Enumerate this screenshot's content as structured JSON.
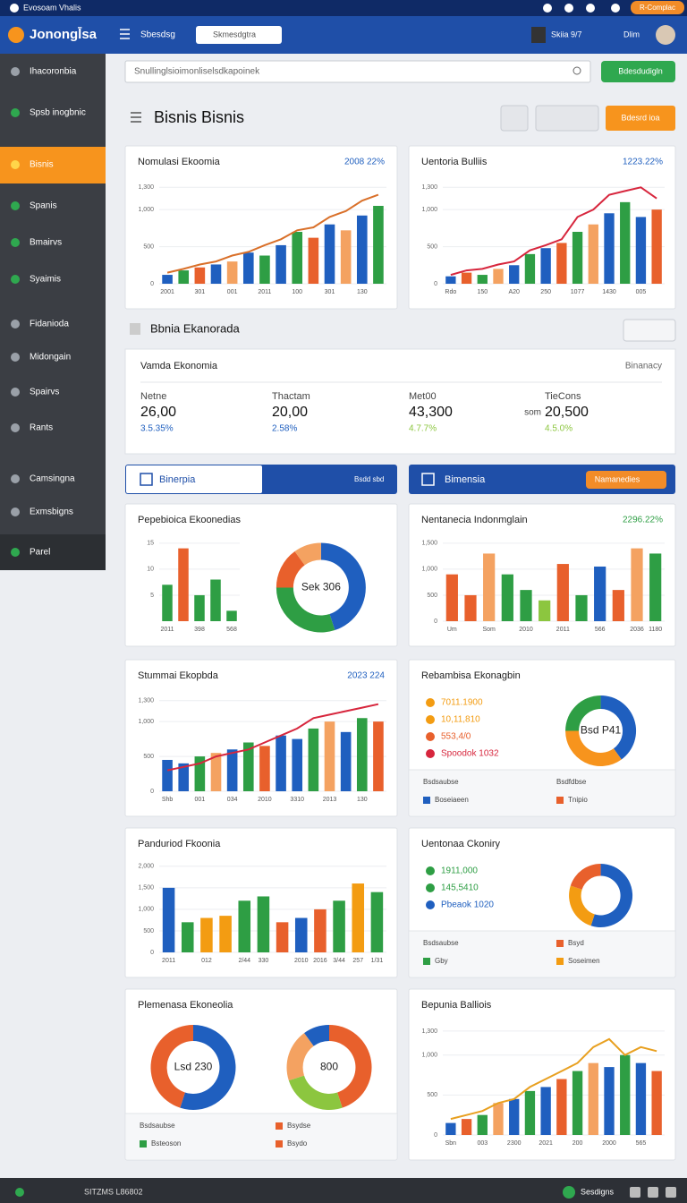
{
  "topbar": {
    "title": "Evosoam Vhalis",
    "badge": "R-Complac"
  },
  "header": {
    "logo": "Jonongl̄sa",
    "menu": "Sbesdsg",
    "search": "Skmesdgtra",
    "user": "Skiia 9/7",
    "account": "Dlim"
  },
  "sidebar": {
    "active": 2,
    "items": [
      {
        "label": "Ihacoronbia",
        "color": "#9aa0a8"
      },
      {
        "label": "Spsb inogbnic",
        "color": "#2fa84f"
      },
      {
        "label": "Bisnis",
        "color": "#ffd54a"
      },
      {
        "label": "Spanis",
        "color": "#2fa84f"
      },
      {
        "label": "Bmairvs",
        "color": "#2fa84f"
      },
      {
        "label": "Syaimis",
        "color": "#2fa84f"
      },
      {
        "label": "Fidanioda",
        "color": "#9aa0a8"
      },
      {
        "label": "Midongain",
        "color": "#9aa0a8"
      },
      {
        "label": "Spairvs",
        "color": "#9aa0a8"
      },
      {
        "label": "Rants",
        "color": "#9aa0a8"
      },
      {
        "label": "Camsingna",
        "color": "#9aa0a8"
      },
      {
        "label": "Exmsbigns",
        "color": "#9aa0a8"
      },
      {
        "label": "Parel",
        "color": "#2fa84f"
      }
    ]
  },
  "search": {
    "placeholder": "Snullinglsioimonliselsdkapoinek",
    "button": "Bdesdudigln"
  },
  "page": {
    "title": "Bisnis Bisnis",
    "button": "Bdesrd ioa"
  },
  "section": {
    "title": "Bbnia Ekanorada"
  },
  "summary": {
    "title": "Vamda Ekonomia",
    "link": "Binanacy",
    "stats": [
      {
        "label": "Netne",
        "value": "26,00",
        "change": "3.5.35%",
        "color": "#1f5fbf"
      },
      {
        "label": "Thactam",
        "value": "20,00",
        "change": "2.58%",
        "color": "#1f5fbf"
      },
      {
        "label": "Met00",
        "value": "43,300",
        "change": "4.7.7%",
        "color": "#8cc63f"
      },
      {
        "label": "TieCons",
        "value": "20,500",
        "change": "4.5.0%",
        "color": "#8cc63f",
        "unit": "som"
      }
    ]
  },
  "tabs": {
    "left": "Binerpia",
    "left_note": "Bsdd sbd",
    "right": "Bimensia",
    "right_button": "Namanedies"
  },
  "cards": [
    {
      "title": "Nomulasi Ekoomia",
      "badge": "2008 22%",
      "badge_color": "#1f5fbf",
      "ylim": [
        0,
        1400
      ],
      "yticks": [
        0,
        500,
        {
          "value": 1000,
          "label": "1,000"
        },
        {
          "value": 1300,
          "label": "1,300"
        }
      ],
      "categories": [
        "2001",
        null,
        "301",
        null,
        "001",
        null,
        "2011",
        null,
        "100",
        null,
        "301",
        null,
        "130",
        null
      ],
      "bars": [
        120,
        180,
        220,
        260,
        300,
        420,
        380,
        520,
        700,
        620,
        800,
        720,
        920,
        1050
      ],
      "colors": [
        "#1f5fbf",
        "#2e9e44",
        "#e8602c",
        "#1f5fbf",
        "#f4a261",
        "#1f5fbf",
        "#2e9e44"
      ],
      "line": {
        "values": [
          150,
          200,
          260,
          300,
          380,
          430,
          520,
          600,
          720,
          760,
          900,
          980,
          1120,
          1200
        ],
        "color": "#d9702a"
      }
    },
    {
      "title": "Uentoria Bulliis",
      "badge": "1223.22%",
      "badge_color": "#1f5fbf",
      "ylim": [
        0,
        1400
      ],
      "yticks": [
        0,
        500,
        {
          "value": 1000,
          "label": "1,000"
        },
        {
          "value": 1300,
          "label": "1,300"
        }
      ],
      "categories": [
        "Rdo",
        null,
        "150",
        null,
        "A20",
        null,
        "250",
        null,
        "1077",
        null,
        "1430",
        null,
        "005",
        null
      ],
      "bars": [
        100,
        150,
        120,
        200,
        250,
        400,
        480,
        550,
        700,
        800,
        950,
        1100,
        900,
        1000
      ],
      "colors": [
        "#1f5fbf",
        "#e8602c",
        "#2e9e44",
        "#f4a261",
        "#1f5fbf",
        "#2e9e44"
      ],
      "line": {
        "values": [
          120,
          180,
          200,
          260,
          300,
          450,
          520,
          600,
          900,
          1000,
          1200,
          1250,
          1300,
          1150
        ],
        "color": "#d7263d"
      }
    },
    {
      "title": "Pepebioica Ekoonedias",
      "ylim": [
        0,
        16
      ],
      "yticks": [
        5,
        10,
        15
      ],
      "categories": [
        "2011",
        null,
        "398",
        null,
        "568"
      ],
      "bars": [
        7,
        14,
        5,
        8,
        2
      ],
      "colors": [
        "#2e9e44",
        "#e8602c",
        "#2e9e44",
        "#2e9e44",
        "#2e9e44"
      ],
      "donuts": [
        {
          "values": [
            45,
            30,
            15,
            10
          ],
          "colors": [
            "#1f5fbf",
            "#2e9e44",
            "#e8602c",
            "#f4a261"
          ],
          "label": "Sek 306"
        }
      ]
    },
    {
      "title": "Nentanecia Indonmglain",
      "badge": "2296.22%",
      "badge_color": "#2e9e44",
      "ylim": [
        0,
        1600
      ],
      "yticks": [
        0,
        500,
        {
          "value": 1000,
          "label": "1,000"
        },
        {
          "value": 1500,
          "label": "1,500"
        }
      ],
      "categories": [
        "Um",
        null,
        "Som",
        null,
        "2010",
        null,
        "2011",
        null,
        "566",
        null,
        "2036",
        "1180"
      ],
      "bars": [
        900,
        500,
        1300,
        900,
        600,
        400,
        1100,
        500,
        1050,
        600,
        1400,
        1300
      ],
      "colors": [
        "#e8602c",
        "#e8602c",
        "#f4a261",
        "#2e9e44",
        "#2e9e44",
        "#8cc63f",
        "#e8602c",
        "#2e9e44",
        "#1f5fbf",
        "#e8602c",
        "#f4a261",
        "#2e9e44"
      ]
    },
    {
      "title": "Stummai Ekopbda",
      "badge": "2023 224",
      "badge_color": "#1f5fbf",
      "ylim": [
        0,
        1400
      ],
      "yticks": [
        0,
        500,
        {
          "value": 1000,
          "label": "1,000"
        },
        {
          "value": 1300,
          "label": "1,300"
        }
      ],
      "categories": [
        "Shb",
        null,
        "001",
        null,
        "034",
        null,
        "2010",
        null,
        "3310",
        null,
        "2013",
        null,
        "130",
        null
      ],
      "bars": [
        450,
        400,
        500,
        550,
        600,
        700,
        650,
        800,
        750,
        900,
        1000,
        850,
        1050,
        1000
      ],
      "colors": [
        "#1f5fbf",
        "#1f5fbf",
        "#2e9e44",
        "#f4a261",
        "#1f5fbf",
        "#2e9e44",
        "#e8602c"
      ],
      "line": {
        "values": [
          300,
          350,
          400,
          500,
          550,
          600,
          700,
          800,
          900,
          1050,
          1100,
          1150,
          1200,
          1250
        ],
        "color": "#d7263d"
      }
    },
    {
      "title": "Rebambisa Ekonagbin",
      "legend": [
        {
          "text": "7011.1900",
          "color": "#f39c12"
        },
        {
          "text": "10,11,810",
          "color": "#f39c12"
        },
        {
          "text": "553,4/0",
          "color": "#e8602c"
        },
        {
          "text": "Spoodok 1032",
          "color": "#d7263d"
        }
      ],
      "donuts": [
        {
          "values": [
            40,
            35,
            25
          ],
          "colors": [
            "#1f5fbf",
            "#f7941d",
            "#2e9e44"
          ],
          "label": "Bsd P41"
        }
      ],
      "footer": [
        {
          "text": "Bsdsaubse"
        },
        {
          "text": "Bsdfdbse"
        },
        {
          "text": "Boseiaeen",
          "color": "#1f5fbf"
        },
        {
          "text": "Tnipio",
          "color": "#e8602c"
        }
      ]
    },
    {
      "title": "Panduriod Fkoonia",
      "ylim": [
        0,
        2100
      ],
      "yticks": [
        0,
        500,
        {
          "value": 1000,
          "label": "1,000"
        },
        {
          "value": 1500,
          "label": "1,500"
        },
        {
          "value": 2000,
          "label": "2,000"
        }
      ],
      "categories": [
        "2011",
        null,
        "012",
        null,
        "2/44",
        "330",
        null,
        "2010",
        "2016",
        "3/44",
        "257",
        "1/31"
      ],
      "bars": [
        1500,
        700,
        800,
        850,
        1200,
        1300,
        700,
        800,
        1000,
        1200,
        1600,
        1400
      ],
      "colors": [
        "#1f5fbf",
        "#2e9e44",
        "#f39c12",
        "#f39c12",
        "#2e9e44",
        "#2e9e44",
        "#e8602c",
        "#1f5fbf",
        "#e8602c",
        "#2e9e44",
        "#f39c12",
        "#2e9e44"
      ]
    },
    {
      "title": "Uentonaa Ckoniry",
      "legend": [
        {
          "text": "1911,000",
          "color": "#2e9e44"
        },
        {
          "text": "145,5410",
          "color": "#2e9e44"
        },
        {
          "text": "Pbeaok 1020",
          "color": "#1f5fbf"
        }
      ],
      "donuts": [
        {
          "values": [
            55,
            25,
            20
          ],
          "colors": [
            "#1f5fbf",
            "#f39c12",
            "#e8602c"
          ]
        }
      ],
      "footer": [
        {
          "text": "Bsdsaubse"
        },
        {
          "text": "Bsyd",
          "color": "#e8602c"
        },
        {
          "text": "Gby",
          "color": "#2e9e44"
        },
        {
          "text": "Soseimen",
          "color": "#f39c12"
        }
      ]
    },
    {
      "title": "Plemenasa Ekoneolia",
      "donuts": [
        {
          "values": [
            55,
            45
          ],
          "colors": [
            "#1f5fbf",
            "#e8602c"
          ],
          "label": "Lsd 230"
        },
        {
          "values": [
            45,
            25,
            20,
            10
          ],
          "colors": [
            "#e8602c",
            "#8cc63f",
            "#f4a261",
            "#1f5fbf"
          ],
          "label": "800"
        }
      ],
      "footer": [
        {
          "text": "Bsdsaubse"
        },
        {
          "text": "Bsydse",
          "color": "#e8602c"
        },
        {
          "text": "Bsteoson",
          "color": "#2e9e44"
        },
        {
          "text": "Bsydo",
          "color": "#e8602c"
        }
      ]
    },
    {
      "title": "Bepunia Balliois",
      "ylim": [
        0,
        1400
      ],
      "yticks": [
        0,
        500,
        {
          "value": 1000,
          "label": "1,000"
        },
        {
          "value": 1300,
          "label": "1,300"
        }
      ],
      "categories": [
        "Sbn",
        null,
        "003",
        null,
        "2300",
        null,
        "2021",
        null,
        "200",
        null,
        "2000",
        null,
        "565",
        null
      ],
      "bars": [
        150,
        200,
        250,
        400,
        450,
        550,
        600,
        700,
        800,
        900,
        850,
        1000,
        900,
        800
      ],
      "colors": [
        "#1f5fbf",
        "#e8602c",
        "#2e9e44",
        "#f4a261",
        "#1f5fbf",
        "#2e9e44"
      ],
      "line": {
        "values": [
          200,
          250,
          300,
          400,
          450,
          600,
          700,
          800,
          900,
          1100,
          1200,
          1000,
          1100,
          1050
        ],
        "color": "#e8a020"
      }
    }
  ],
  "bottombar": {
    "left": "SITZMS L86802",
    "right": "Sesdigns"
  }
}
